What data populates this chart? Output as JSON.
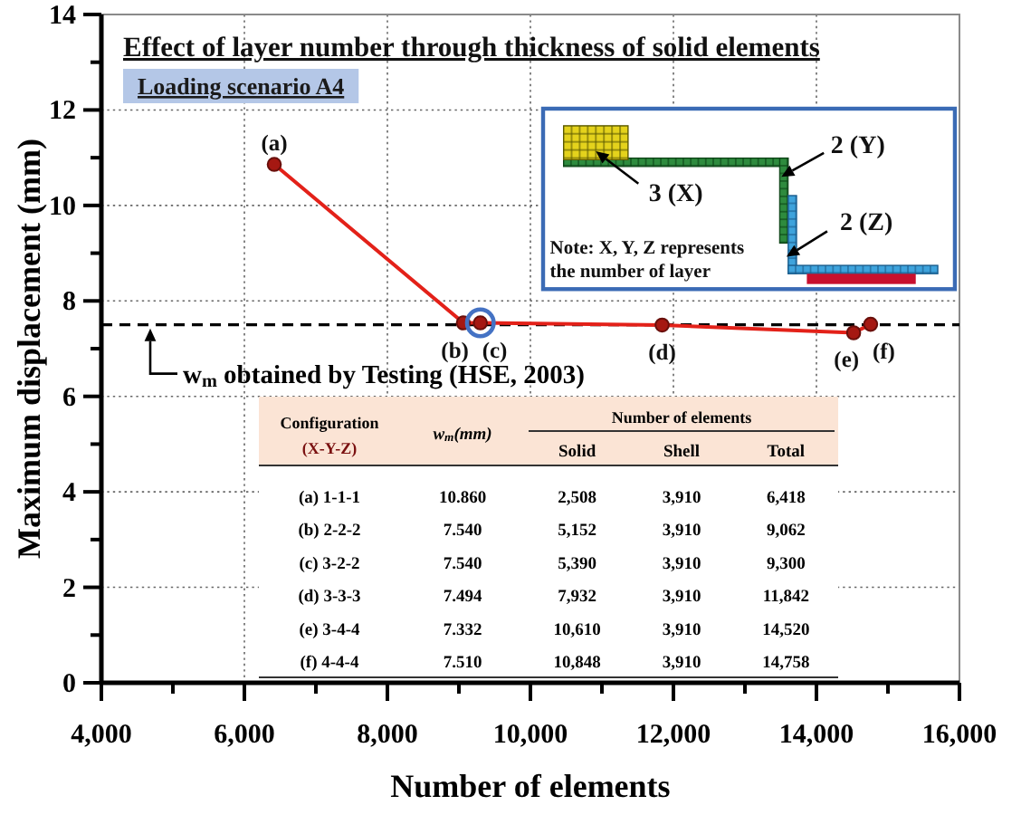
{
  "chart_data": [
    {
      "type": "line",
      "title": "Effect of layer number through thickness of solid elements",
      "subtitle": "Loading scenario A4",
      "xlabel": "Number of elements",
      "ylabel": "Maximum displacement (mm)",
      "xlim": [
        4000,
        16000
      ],
      "ylim": [
        0,
        14
      ],
      "xticks": [
        {
          "value": 4000,
          "label": "4,000"
        },
        {
          "value": 5000,
          "label": null
        },
        {
          "value": 6000,
          "label": "6,000"
        },
        {
          "value": 7000,
          "label": null
        },
        {
          "value": 8000,
          "label": "8,000"
        },
        {
          "value": 9000,
          "label": null
        },
        {
          "value": 10000,
          "label": "10,000"
        },
        {
          "value": 11000,
          "label": null
        },
        {
          "value": 12000,
          "label": "12,000"
        },
        {
          "value": 13000,
          "label": null
        },
        {
          "value": 14000,
          "label": "14,000"
        },
        {
          "value": 15000,
          "label": null
        },
        {
          "value": 16000,
          "label": "16,000"
        }
      ],
      "yticks": [
        0,
        {
          "value": 1,
          "label": null
        },
        2,
        {
          "value": 3,
          "label": null
        },
        4,
        {
          "value": 5,
          "label": null
        },
        6,
        {
          "value": 7,
          "label": null
        },
        8,
        {
          "value": 9,
          "label": null
        },
        10,
        {
          "value": 11,
          "label": null
        },
        12,
        {
          "value": 13,
          "label": null
        },
        14
      ],
      "grid": true,
      "marker": "circle",
      "series": [
        {
          "type": "line",
          "color": "#e32119",
          "x": [
            6418,
            9062,
            9300,
            11842,
            14520,
            14758
          ],
          "values": [
            10.86,
            7.54,
            7.54,
            7.494,
            7.332,
            7.51
          ]
        },
        {
          "type": "scatter",
          "color": "#4472c4",
          "x": [
            9300
          ],
          "values": [
            7.54
          ]
        }
      ],
      "ref_lines": [
        {
          "axis": "y",
          "value": 7.5,
          "label": "w$_{m}$ obtained by Testing (HSE, 2003)",
          "color": "#000000",
          "line_style": "dashed"
        }
      ],
      "annotations": [
        {
          "text": "(a)",
          "x": 6418,
          "y": 10.86
        },
        {
          "text": "(b)",
          "x": 9062,
          "y": 7.54
        },
        {
          "text": "(c)",
          "x": 9300,
          "y": 7.54
        },
        {
          "text": "(d)",
          "x": 11842,
          "y": 7.494
        },
        {
          "text": "(e)",
          "x": 14520,
          "y": 7.332
        },
        {
          "text": "(f)",
          "x": 14758,
          "y": 7.51
        },
        "3 (X)",
        "2 (Y)",
        "2 (Z)",
        "Note: X, Y, Z represents the number of layer"
      ]
    },
    {
      "type": "other",
      "categories": [
        "(a) 1-1-1",
        "(b) 2-2-2",
        "(c) 3-2-2",
        "(d) 3-3-3",
        "(e) 3-4-4",
        "(f) 4-4-4"
      ],
      "series": [
        {
          "name": "w$_{m}$(mm)",
          "values": [
            10.86,
            7.54,
            7.54,
            7.494,
            7.332,
            7.51
          ],
          "value_labels": [
            "10.860",
            "7.540",
            "7.540",
            "7.494",
            "7.332",
            "7.510"
          ]
        },
        {
          "name": "Solid",
          "values": [
            2508,
            5152,
            5390,
            7932,
            10610,
            10848
          ],
          "value_labels": [
            "2,508",
            "5,152",
            "5,390",
            "7,932",
            "10,610",
            "10,848"
          ]
        },
        {
          "name": "Shell",
          "values": [
            3910,
            3910,
            3910,
            3910,
            3910,
            3910
          ],
          "value_labels": [
            "3,910",
            "3,910",
            "3,910",
            "3,910",
            "3,910",
            "3,910"
          ]
        },
        {
          "name": "Total",
          "values": [
            6418,
            9062,
            9300,
            11842,
            14520,
            14758
          ],
          "value_labels": [
            "6,418",
            "9,062",
            "9,300",
            "11,842",
            "14,520",
            "14,758"
          ]
        }
      ],
      "annotations": [
        "Configuration",
        "(X-Y-Z)",
        "Number of elements"
      ]
    }
  ]
}
